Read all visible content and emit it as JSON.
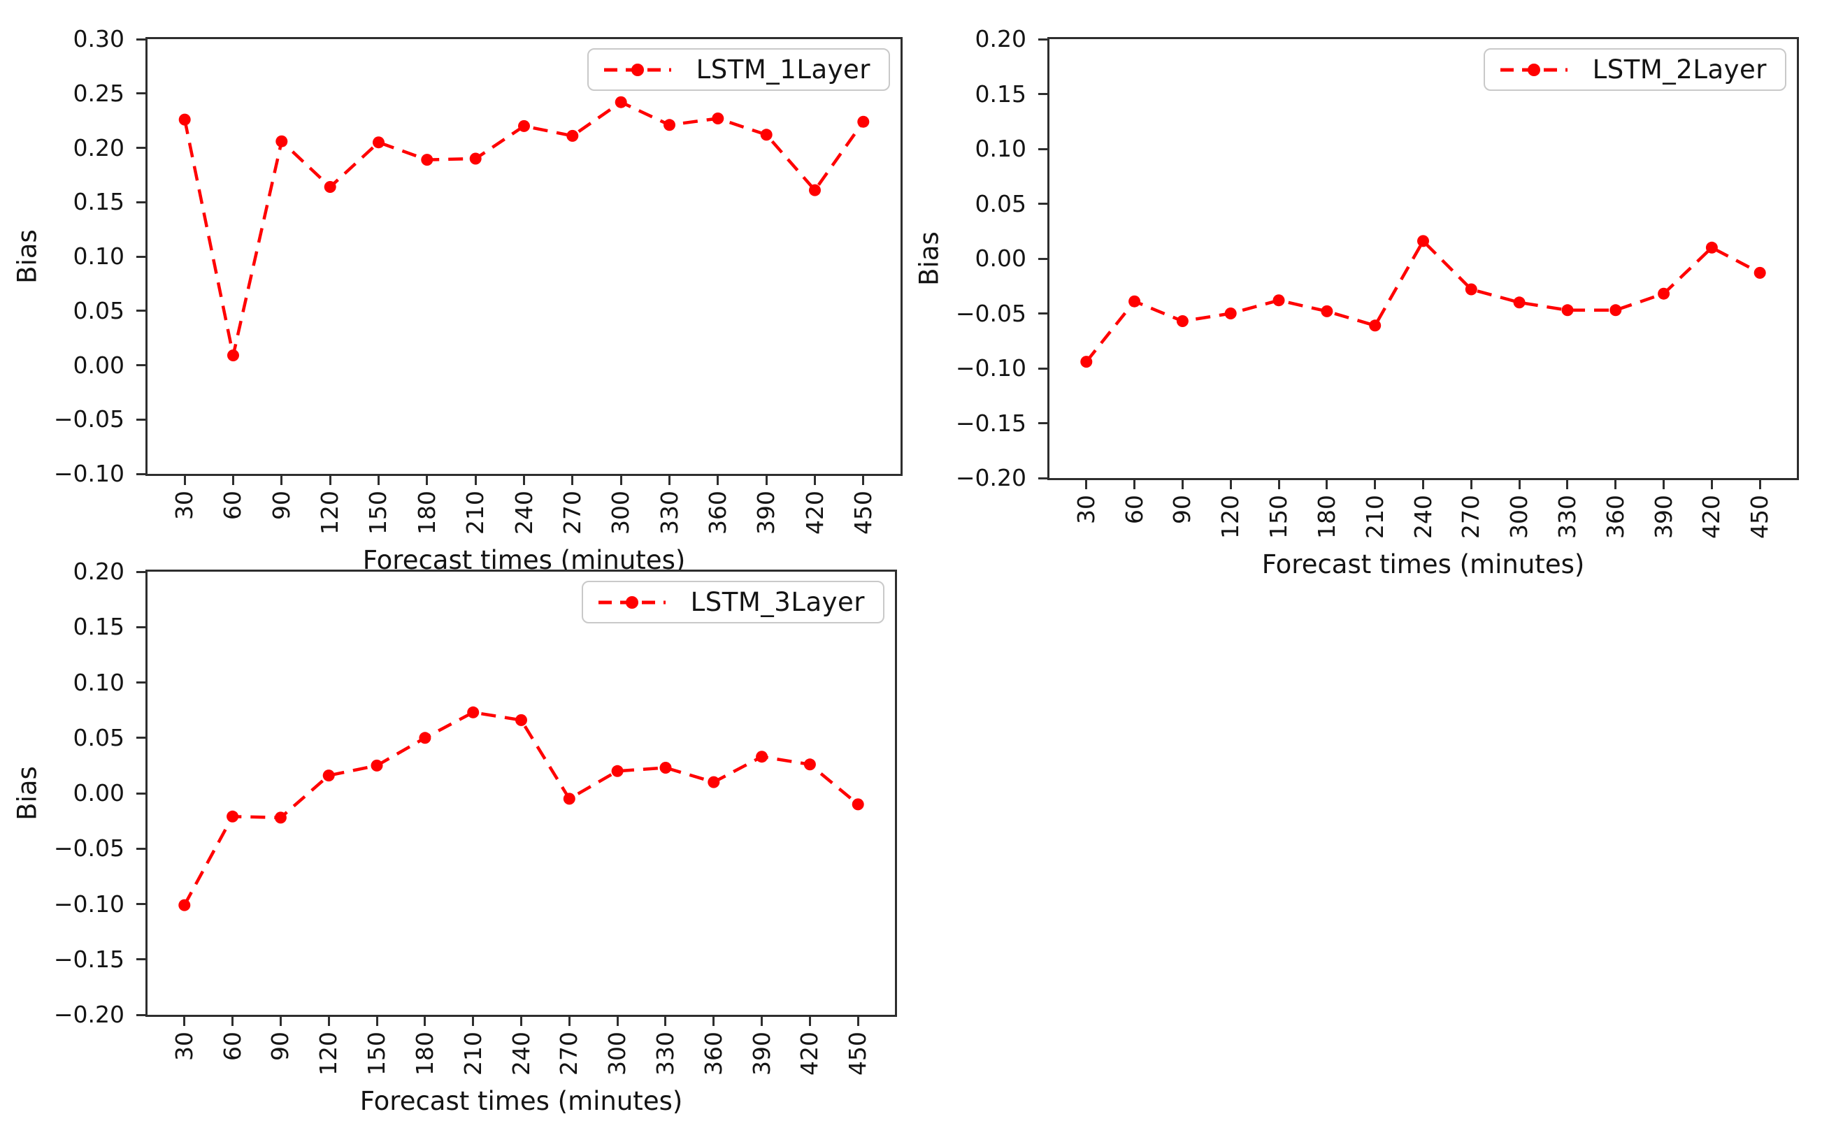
{
  "figure": {
    "background": "#ffffff",
    "accent_color": "#ff0000",
    "spine_color": "#2e2e2e",
    "text_color": "#141414",
    "legend_border_color": "#c9c9c9"
  },
  "chart_data": [
    {
      "type": "line",
      "title": "",
      "xlabel": "Forecast times (minutes)",
      "ylabel": "Bias",
      "legend_position": "upper right",
      "grid": false,
      "line_color": "#ff0000",
      "line_style": "dashed",
      "marker": "circle",
      "x": [
        30,
        60,
        90,
        120,
        150,
        180,
        210,
        240,
        270,
        300,
        330,
        360,
        390,
        420,
        450
      ],
      "xtick_labels": [
        "30",
        "60",
        "90",
        "120",
        "150",
        "180",
        "210",
        "240",
        "270",
        "300",
        "330",
        "360",
        "390",
        "420",
        "450"
      ],
      "series": [
        {
          "name": "LSTM_1Layer",
          "values": [
            0.226,
            0.009,
            0.206,
            0.164,
            0.205,
            0.189,
            0.19,
            0.22,
            0.211,
            0.242,
            0.221,
            0.227,
            0.212,
            0.161,
            0.224
          ]
        }
      ],
      "xlim": [
        7,
        473
      ],
      "ylim": [
        -0.1,
        0.3
      ],
      "yticks": [
        0.3,
        0.25,
        0.2,
        0.15,
        0.1,
        0.05,
        0.0,
        -0.05,
        -0.1
      ],
      "ytick_labels": [
        "0.30",
        "0.25",
        "0.20",
        "0.15",
        "0.10",
        "0.05",
        "0.00",
        "−0.05",
        "−0.10"
      ]
    },
    {
      "type": "line",
      "title": "",
      "xlabel": "Forecast times (minutes)",
      "ylabel": "Bias",
      "legend_position": "upper right",
      "grid": false,
      "line_color": "#ff0000",
      "line_style": "dashed",
      "marker": "circle",
      "x": [
        30,
        60,
        90,
        120,
        150,
        180,
        210,
        240,
        270,
        300,
        330,
        360,
        390,
        420,
        450
      ],
      "xtick_labels": [
        "30",
        "60",
        "90",
        "120",
        "150",
        "180",
        "210",
        "240",
        "270",
        "300",
        "330",
        "360",
        "390",
        "420",
        "450"
      ],
      "series": [
        {
          "name": "LSTM_2Layer",
          "values": [
            -0.094,
            -0.039,
            -0.057,
            -0.05,
            -0.038,
            -0.048,
            -0.061,
            0.016,
            -0.028,
            -0.04,
            -0.047,
            -0.047,
            -0.032,
            0.01,
            -0.013
          ]
        }
      ],
      "xlim": [
        7,
        473
      ],
      "ylim": [
        -0.2,
        0.2
      ],
      "yticks": [
        0.2,
        0.15,
        0.1,
        0.05,
        0.0,
        -0.05,
        -0.1,
        -0.15,
        -0.2
      ],
      "ytick_labels": [
        "0.20",
        "0.15",
        "0.10",
        "0.05",
        "0.00",
        "−0.05",
        "−0.10",
        "−0.15",
        "−0.20"
      ]
    },
    {
      "type": "line",
      "title": "",
      "xlabel": "Forecast times (minutes)",
      "ylabel": "Bias",
      "legend_position": "upper right",
      "grid": false,
      "line_color": "#ff0000",
      "line_style": "dashed",
      "marker": "circle",
      "x": [
        30,
        60,
        90,
        120,
        150,
        180,
        210,
        240,
        270,
        300,
        330,
        360,
        390,
        420,
        450
      ],
      "xtick_labels": [
        "30",
        "60",
        "90",
        "120",
        "150",
        "180",
        "210",
        "240",
        "270",
        "300",
        "330",
        "360",
        "390",
        "420",
        "450"
      ],
      "series": [
        {
          "name": "LSTM_3Layer",
          "values": [
            -0.101,
            -0.021,
            -0.022,
            0.016,
            0.025,
            0.05,
            0.073,
            0.066,
            -0.005,
            0.02,
            0.023,
            0.01,
            0.033,
            0.026,
            -0.01
          ]
        }
      ],
      "xlim": [
        7,
        473
      ],
      "ylim": [
        -0.2,
        0.2
      ],
      "yticks": [
        0.2,
        0.15,
        0.1,
        0.05,
        0.0,
        -0.05,
        -0.1,
        -0.15,
        -0.2
      ],
      "ytick_labels": [
        "0.20",
        "0.15",
        "0.10",
        "0.05",
        "0.00",
        "−0.05",
        "−0.10",
        "−0.15",
        "−0.20"
      ]
    }
  ]
}
